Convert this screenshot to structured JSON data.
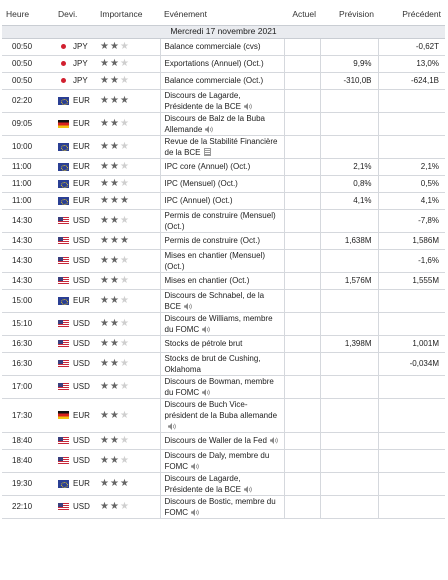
{
  "headers": {
    "time": "Heure",
    "currency": "Devi.",
    "importance": "Importance",
    "event": "Evénement",
    "actual": "Actuel",
    "forecast": "Prévision",
    "previous": "Précédent"
  },
  "date_label": "Mercredi 17 novembre 2021",
  "rows": [
    {
      "time": "00:50",
      "currency": "JPY",
      "flag": "jpy",
      "stars": 2,
      "event": "Balance commerciale (cvs)",
      "icon": "",
      "actual": "",
      "forecast": "",
      "previous": "-0,62T"
    },
    {
      "time": "00:50",
      "currency": "JPY",
      "flag": "jpy",
      "stars": 2,
      "event": "Exportations (Annuel) (Oct.)",
      "icon": "",
      "actual": "",
      "forecast": "9,9%",
      "previous": "13,0%"
    },
    {
      "time": "00:50",
      "currency": "JPY",
      "flag": "jpy",
      "stars": 2,
      "event": "Balance commerciale (Oct.)",
      "icon": "",
      "actual": "",
      "forecast": "-310,0B",
      "previous": "-624,1B"
    },
    {
      "time": "02:20",
      "currency": "EUR",
      "flag": "eur",
      "stars": 3,
      "event": "Discours de Lagarde, Présidente de la BCE",
      "icon": "speaker",
      "actual": "",
      "forecast": "",
      "previous": ""
    },
    {
      "time": "09:05",
      "currency": "EUR",
      "flag": "de",
      "stars": 2,
      "event": "Discours de Balz de la Buba Allemande",
      "icon": "speaker",
      "actual": "",
      "forecast": "",
      "previous": ""
    },
    {
      "time": "10:00",
      "currency": "EUR",
      "flag": "eur",
      "stars": 2,
      "event": "Revue de la Stabilité Financière de la BCE",
      "icon": "doc",
      "actual": "",
      "forecast": "",
      "previous": ""
    },
    {
      "time": "11:00",
      "currency": "EUR",
      "flag": "eur",
      "stars": 2,
      "event": "IPC core (Annuel) (Oct.)",
      "icon": "",
      "actual": "",
      "forecast": "2,1%",
      "previous": "2,1%"
    },
    {
      "time": "11:00",
      "currency": "EUR",
      "flag": "eur",
      "stars": 2,
      "event": "IPC (Mensuel) (Oct.)",
      "icon": "",
      "actual": "",
      "forecast": "0,8%",
      "previous": "0,5%"
    },
    {
      "time": "11:00",
      "currency": "EUR",
      "flag": "eur",
      "stars": 3,
      "event": "IPC (Annuel) (Oct.)",
      "icon": "",
      "actual": "",
      "forecast": "4,1%",
      "previous": "4,1%"
    },
    {
      "time": "14:30",
      "currency": "USD",
      "flag": "usd",
      "stars": 2,
      "event": "Permis de construire (Mensuel) (Oct.)",
      "icon": "",
      "actual": "",
      "forecast": "",
      "previous": "-7,8%"
    },
    {
      "time": "14:30",
      "currency": "USD",
      "flag": "usd",
      "stars": 3,
      "event": "Permis de construire (Oct.)",
      "icon": "",
      "actual": "",
      "forecast": "1,638M",
      "previous": "1,586M"
    },
    {
      "time": "14:30",
      "currency": "USD",
      "flag": "usd",
      "stars": 2,
      "event": "Mises en chantier (Mensuel) (Oct.)",
      "icon": "",
      "actual": "",
      "forecast": "",
      "previous": "-1,6%"
    },
    {
      "time": "14:30",
      "currency": "USD",
      "flag": "usd",
      "stars": 2,
      "event": "Mises en chantier (Oct.)",
      "icon": "",
      "actual": "",
      "forecast": "1,576M",
      "previous": "1,555M"
    },
    {
      "time": "15:00",
      "currency": "EUR",
      "flag": "eur",
      "stars": 2,
      "event": "Discours de Schnabel, de la BCE",
      "icon": "speaker",
      "actual": "",
      "forecast": "",
      "previous": ""
    },
    {
      "time": "15:10",
      "currency": "USD",
      "flag": "usd",
      "stars": 2,
      "event": "Discours de Williams, membre du FOMC",
      "icon": "speaker",
      "actual": "",
      "forecast": "",
      "previous": ""
    },
    {
      "time": "16:30",
      "currency": "USD",
      "flag": "usd",
      "stars": 2,
      "event": "Stocks de pétrole brut",
      "icon": "",
      "actual": "",
      "forecast": "1,398M",
      "previous": "1,001M"
    },
    {
      "time": "16:30",
      "currency": "USD",
      "flag": "usd",
      "stars": 2,
      "event": "Stocks de brut de Cushing, Oklahoma",
      "icon": "",
      "actual": "",
      "forecast": "",
      "previous": "-0,034M"
    },
    {
      "time": "17:00",
      "currency": "USD",
      "flag": "usd",
      "stars": 2,
      "event": "Discours de Bowman, membre du FOMC",
      "icon": "speaker",
      "actual": "",
      "forecast": "",
      "previous": ""
    },
    {
      "time": "17:30",
      "currency": "EUR",
      "flag": "de",
      "stars": 2,
      "event": "Discours de Buch Vice-président de la Buba allemande",
      "icon": "speaker",
      "actual": "",
      "forecast": "",
      "previous": ""
    },
    {
      "time": "18:40",
      "currency": "USD",
      "flag": "usd",
      "stars": 2,
      "event": "Discours de Waller de la Fed",
      "icon": "speaker",
      "actual": "",
      "forecast": "",
      "previous": ""
    },
    {
      "time": "18:40",
      "currency": "USD",
      "flag": "usd",
      "stars": 2,
      "event": "Discours de Daly, membre du FOMC",
      "icon": "speaker",
      "actual": "",
      "forecast": "",
      "previous": ""
    },
    {
      "time": "19:30",
      "currency": "EUR",
      "flag": "eur",
      "stars": 3,
      "event": "Discours de Lagarde, Présidente de la BCE",
      "icon": "speaker",
      "actual": "",
      "forecast": "",
      "previous": ""
    },
    {
      "time": "22:10",
      "currency": "USD",
      "flag": "usd",
      "stars": 2,
      "event": "Discours de Bostic, membre du FOMC",
      "icon": "speaker",
      "actual": "",
      "forecast": "",
      "previous": ""
    }
  ]
}
